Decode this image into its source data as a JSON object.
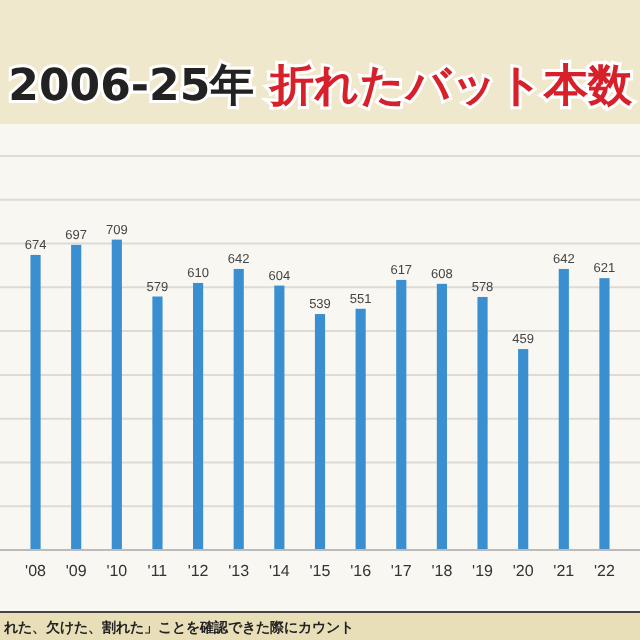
{
  "chart_data": {
    "type": "bar",
    "title": "2006-25年 折れたバット本数",
    "categories": [
      "'08",
      "'09",
      "'10",
      "'11",
      "'12",
      "'13",
      "'14",
      "'15",
      "'16",
      "'17",
      "'18",
      "'19",
      "'20",
      "'21",
      "'22"
    ],
    "values": [
      674,
      697,
      709,
      579,
      610,
      642,
      604,
      539,
      551,
      617,
      608,
      578,
      459,
      642,
      621
    ],
    "color": "#3a8fd0",
    "data_labels": true,
    "ylim": [
      0,
      900
    ],
    "yticks": [
      {
        "value": 0,
        "label": null
      },
      {
        "value": 100,
        "label": null
      },
      {
        "value": 200,
        "label": null
      },
      {
        "value": 300,
        "label": null
      },
      {
        "value": 400,
        "label": null
      },
      {
        "value": 500,
        "label": null
      },
      {
        "value": 600,
        "label": null
      },
      {
        "value": 700,
        "label": null
      },
      {
        "value": 800,
        "label": null
      },
      {
        "value": 900,
        "label": null
      }
    ],
    "grid": "y",
    "tick_labels": "x",
    "annotations": [
      "れた、欠けた、割れた」ことを確認できた際にカウント"
    ]
  }
}
